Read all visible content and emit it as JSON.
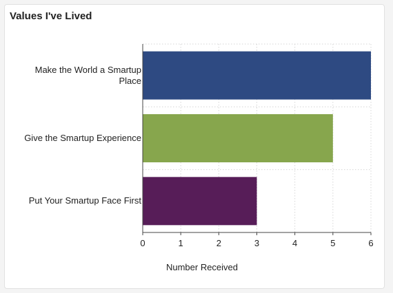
{
  "card": {
    "title": "Values I've Lived"
  },
  "chart_data": {
    "type": "bar",
    "orientation": "horizontal",
    "categories": [
      "Make the World a Smartup Place",
      "Give the Smartup Experience",
      "Put Your Smartup Face First"
    ],
    "values": [
      6,
      5,
      3
    ],
    "colors": [
      "#2e4a82",
      "#87a64d",
      "#571d58"
    ],
    "xlabel": "Number Received",
    "ylabel": "",
    "xlim": [
      0,
      6
    ],
    "xticks": [
      "0",
      "1",
      "2",
      "3",
      "4",
      "5",
      "6"
    ],
    "grid": true
  }
}
